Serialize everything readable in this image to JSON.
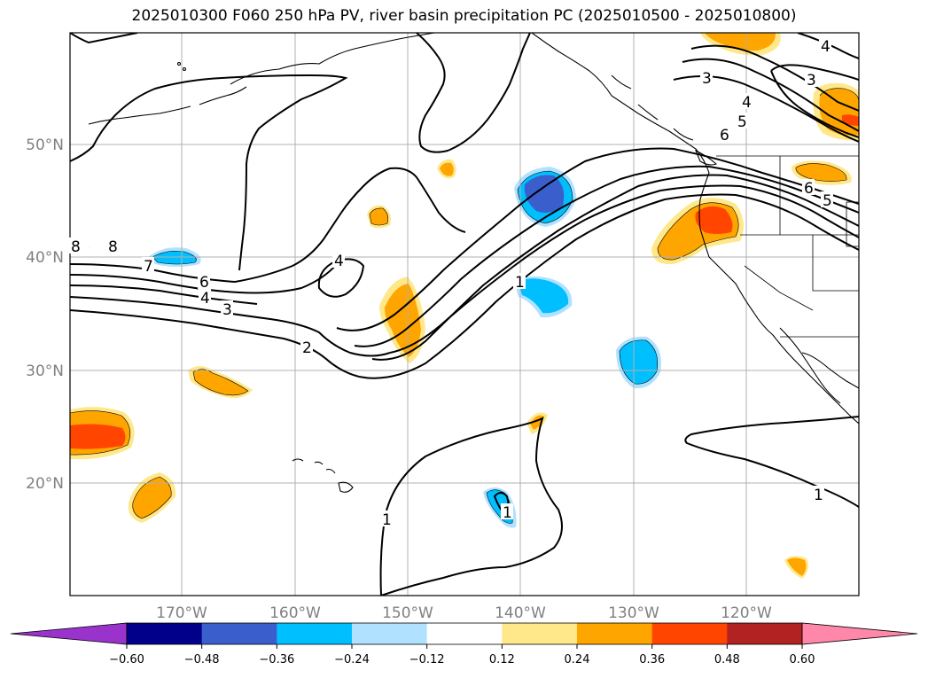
{
  "title": "2025010300 F060 250 hPa PV, river basin precipitation PC (2025010500 - 2025010800)",
  "lat_labels": [
    "50°N",
    "40°N",
    "30°N",
    "20°N"
  ],
  "lon_labels": [
    "170°W",
    "160°W",
    "150°W",
    "140°W",
    "130°W",
    "120°W"
  ],
  "contour_labels": [
    "8",
    "7",
    "6",
    "4",
    "3",
    "2",
    "4",
    "1",
    "1",
    "1",
    "1",
    "2",
    "3",
    "4",
    "5",
    "6",
    "6",
    "5",
    "4",
    "3",
    "1"
  ],
  "colorbar": {
    "colors": [
      "#9933cc",
      "#00008b",
      "#3a5fcd",
      "#00bfff",
      "#b0e2ff",
      "#ffffff",
      "#ffe88a",
      "#ffa500",
      "#ff4500",
      "#b22222",
      "#ff88aa"
    ],
    "tick_labels": [
      "−0.60",
      "−0.48",
      "−0.36",
      "−0.24",
      "−0.12",
      "0.12",
      "0.24",
      "0.36",
      "0.48",
      "0.60"
    ]
  },
  "fill_colors": {
    "pale": "#ffe88a",
    "orange": "#ffa500",
    "red": "#ff4500",
    "lightblue": "#00bfff",
    "blue": "#3a5fcd",
    "paleblue": "#b0e2ff"
  }
}
